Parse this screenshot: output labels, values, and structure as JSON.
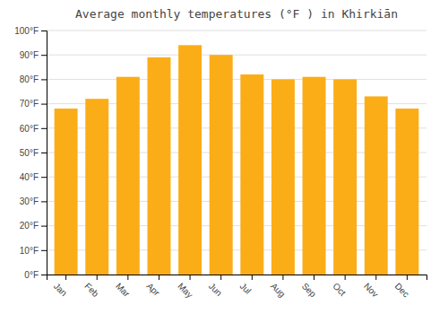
{
  "chart_data": {
    "type": "bar",
    "title": "Average monthly temperatures (°F ) in Khirkiān",
    "categories": [
      "Jan",
      "Feb",
      "Mar",
      "Apr",
      "May",
      "Jun",
      "Jul",
      "Aug",
      "Sep",
      "Oct",
      "Nov",
      "Dec"
    ],
    "values": [
      68,
      72,
      81,
      89,
      94,
      90,
      82,
      80,
      81,
      80,
      73,
      68
    ],
    "color": "#FBAD18",
    "ylim": [
      0,
      100
    ],
    "yticks": [
      {
        "value": 0,
        "label": "0°F"
      },
      {
        "value": 10,
        "label": "10°F"
      },
      {
        "value": 20,
        "label": "20°F"
      },
      {
        "value": 30,
        "label": "30°F"
      },
      {
        "value": 40,
        "label": "40°F"
      },
      {
        "value": 50,
        "label": "50°F"
      },
      {
        "value": 60,
        "label": "60°F"
      },
      {
        "value": 70,
        "label": "70°F"
      },
      {
        "value": 80,
        "label": "80°F"
      },
      {
        "value": 90,
        "label": "90°F"
      },
      {
        "value": 100,
        "label": "100°F"
      }
    ],
    "grid": true
  }
}
